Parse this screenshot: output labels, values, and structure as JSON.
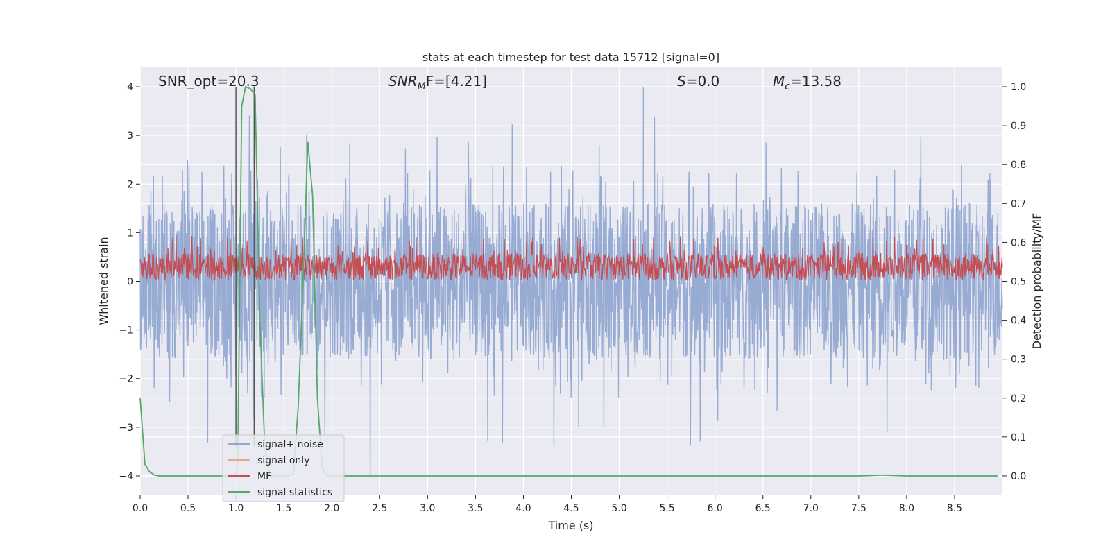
{
  "chart_data": {
    "type": "line",
    "title": "stats at each timestep for test data 15712 [signal=0]",
    "xlabel": "Time (s)",
    "ylabel": "Whitened strain",
    "ylabel_right": "Detection probability/MF",
    "xlim": [
      0.0,
      9.0
    ],
    "ylim": [
      -4.4,
      4.4
    ],
    "ylim_right": [
      -0.05,
      1.05
    ],
    "xticks": [
      0.0,
      0.5,
      1.0,
      1.5,
      2.0,
      2.5,
      3.0,
      3.5,
      4.0,
      4.5,
      5.0,
      5.5,
      6.0,
      6.5,
      7.0,
      7.5,
      8.0,
      8.5
    ],
    "xtick_labels": [
      "0.0",
      "0.5",
      "1.0",
      "1.5",
      "2.0",
      "2.5",
      "3.0",
      "3.5",
      "4.0",
      "4.5",
      "5.0",
      "5.5",
      "6.0",
      "6.5",
      "7.0",
      "7.5",
      "8.0",
      "8.5"
    ],
    "yticks": [
      -4,
      -3,
      -2,
      -1,
      0,
      1,
      2,
      3,
      4
    ],
    "ytick_labels": [
      "−4",
      "−3",
      "−2",
      "−1",
      "0",
      "1",
      "2",
      "3",
      "4"
    ],
    "yticks_right": [
      0.0,
      0.1,
      0.2,
      0.3,
      0.4,
      0.5,
      0.6,
      0.7,
      0.8,
      0.9,
      1.0
    ],
    "ytick_labels_right": [
      "0.0",
      "0.1",
      "0.2",
      "0.3",
      "0.4",
      "0.5",
      "0.6",
      "0.7",
      "0.8",
      "0.9",
      "1.0"
    ],
    "annotations": {
      "snr_opt": "SNR_opt=20.3",
      "snr_mf_main": "SNR",
      "snr_mf_sub": "M",
      "snr_mf_tail": "F=[4.21]",
      "s_main": "S",
      "s_tail": "=0.0",
      "mc_main": "M",
      "mc_sub": "c",
      "mc_tail": "=13.58"
    },
    "legend": {
      "position": "lower-left",
      "entries": [
        {
          "label": "signal+ noise",
          "color": "#92a8d1"
        },
        {
          "label": "signal only",
          "color": "#e8a98b"
        },
        {
          "label": "MF",
          "color": "#c44e52"
        },
        {
          "label": "signal statistics",
          "color": "#55a868"
        }
      ]
    },
    "series": [
      {
        "name": "signal+ noise",
        "color": "#92a8d1",
        "kind": "noise",
        "range": [
          -1.6,
          1.6
        ],
        "peak_max": 4.0,
        "peak_min": -4.0,
        "duration": 9.0
      },
      {
        "name": "MF",
        "color": "#c44e52",
        "kind": "mf",
        "range": [
          0.0,
          0.8
        ],
        "duration": 9.0
      },
      {
        "name": "signal statistics",
        "color": "#55a868",
        "axis": "right",
        "x": [
          0.0,
          0.05,
          0.1,
          0.15,
          0.2,
          0.3,
          0.5,
          0.8,
          1.0,
          1.02,
          1.06,
          1.1,
          1.15,
          1.2,
          1.25,
          1.3,
          1.35,
          1.4,
          1.45,
          1.5,
          1.55,
          1.6,
          1.65,
          1.7,
          1.75,
          1.8,
          1.85,
          1.9,
          1.95,
          2.0,
          2.5,
          3.0,
          4.0,
          5.0,
          6.0,
          7.0,
          7.5,
          7.75,
          8.0,
          8.5,
          8.95
        ],
        "y": [
          0.2,
          0.03,
          0.01,
          0.002,
          0.0,
          0.0,
          0.0,
          0.0,
          0.0,
          0.05,
          0.95,
          1.0,
          0.995,
          0.98,
          0.4,
          0.08,
          0.0,
          0.0,
          0.0,
          0.0,
          0.0,
          0.005,
          0.18,
          0.5,
          0.86,
          0.72,
          0.2,
          0.02,
          0.0,
          0.0,
          0.0,
          0.0,
          0.0,
          0.0,
          0.0,
          0.0,
          0.0,
          0.002,
          0.0,
          0.0,
          0.0
        ]
      }
    ],
    "vertical_lines": [
      {
        "x": 1.0,
        "color": "#555555"
      },
      {
        "x": 1.19,
        "color": "#555555"
      }
    ]
  }
}
